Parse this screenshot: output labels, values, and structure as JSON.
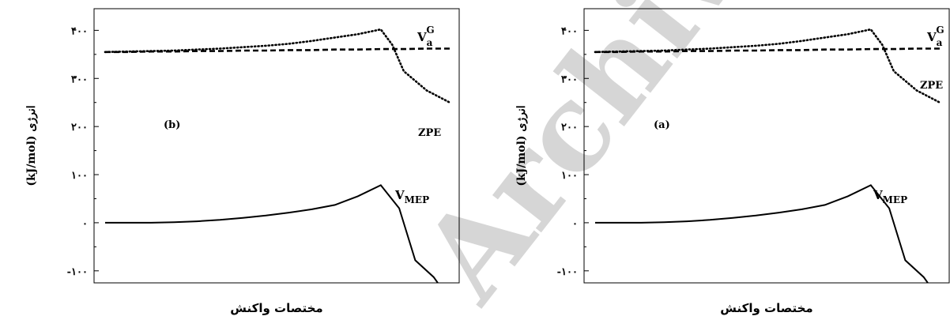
{
  "chart_data": [
    {
      "type": "line",
      "panel_label": "(b)",
      "ylabel": "(kJ/mol) انرژی",
      "xlabel": "مختصات واکنش",
      "ylim": [
        -125,
        445
      ],
      "xlim": [
        0,
        15
      ],
      "yticks": [
        -100,
        0,
        100,
        200,
        300,
        400
      ],
      "ytick_labels": [
        "-۱۰۰",
        "۰",
        "۱۰۰",
        "۲۰۰",
        "۳۰۰",
        "۴۰۰"
      ],
      "annotations": {
        "va_main": "V",
        "va_sub": "a",
        "va_sup": "G",
        "zpe": "ZPE",
        "vmep_main": "V",
        "vmep_sub": "MEP"
      },
      "series": [
        {
          "key": "vmep",
          "style": "solid",
          "x": [
            0,
            1,
            2,
            3,
            4,
            5,
            6,
            7,
            8,
            9,
            10,
            11,
            12,
            12.8,
            13.5,
            14.3,
            15
          ],
          "y": [
            0,
            0,
            0,
            1,
            3,
            6,
            10,
            15,
            21,
            28,
            37,
            55,
            78,
            30,
            -78,
            -113,
            -160
          ]
        },
        {
          "key": "vag",
          "style": "dotted",
          "x": [
            0,
            1,
            2,
            3,
            4,
            5,
            6,
            7,
            8,
            9,
            10,
            11,
            12,
            12.5,
            13,
            14,
            15
          ],
          "y": [
            355,
            356,
            357,
            358,
            360,
            362,
            365,
            368,
            372,
            378,
            385,
            392,
            402,
            370,
            315,
            275,
            250
          ]
        },
        {
          "key": "zpe",
          "style": "dashed",
          "x": [
            0,
            1,
            2,
            3,
            4,
            5,
            6,
            7,
            8,
            9,
            10,
            11,
            12,
            13,
            14,
            15
          ],
          "y": [
            355,
            355,
            356,
            356,
            357,
            357,
            358,
            358,
            359,
            359,
            360,
            360,
            361,
            361,
            362,
            362
          ]
        }
      ]
    },
    {
      "type": "line",
      "panel_label": "(a)",
      "ylabel": "(kJ/mol) انرژی",
      "xlabel": "مختصات واکنش",
      "ylim": [
        -125,
        445
      ],
      "xlim": [
        0,
        15
      ],
      "yticks": [
        -100,
        0,
        100,
        200,
        300,
        400
      ],
      "ytick_labels": [
        "-۱۰۰",
        "۰",
        "۱۰۰",
        "۲۰۰",
        "۳۰۰",
        "۴۰۰"
      ],
      "annotations": {
        "va_main": "V",
        "va_sub": "a",
        "va_sup": "G",
        "zpe": "ZPE",
        "vmep_main": "V",
        "vmep_sub": "MEP"
      },
      "series": [
        {
          "key": "vmep",
          "style": "solid",
          "x": [
            0,
            1,
            2,
            3,
            4,
            5,
            6,
            7,
            8,
            9,
            10,
            11,
            12,
            12.8,
            13.5,
            14.3,
            15
          ],
          "y": [
            0,
            0,
            0,
            1,
            3,
            6,
            10,
            15,
            21,
            28,
            37,
            55,
            78,
            30,
            -78,
            -113,
            -160
          ]
        },
        {
          "key": "vag",
          "style": "dotted",
          "x": [
            0,
            1,
            2,
            3,
            4,
            5,
            6,
            7,
            8,
            9,
            10,
            11,
            12,
            12.5,
            13,
            14,
            15
          ],
          "y": [
            355,
            356,
            357,
            358,
            360,
            362,
            365,
            368,
            372,
            378,
            385,
            392,
            402,
            370,
            315,
            275,
            250
          ]
        },
        {
          "key": "zpe",
          "style": "dashed",
          "x": [
            0,
            1,
            2,
            3,
            4,
            5,
            6,
            7,
            8,
            9,
            10,
            11,
            12,
            13,
            14,
            15
          ],
          "y": [
            355,
            355,
            356,
            356,
            357,
            357,
            358,
            358,
            359,
            359,
            360,
            360,
            361,
            361,
            362,
            362
          ]
        }
      ]
    }
  ],
  "watermark": "Archive of SID"
}
